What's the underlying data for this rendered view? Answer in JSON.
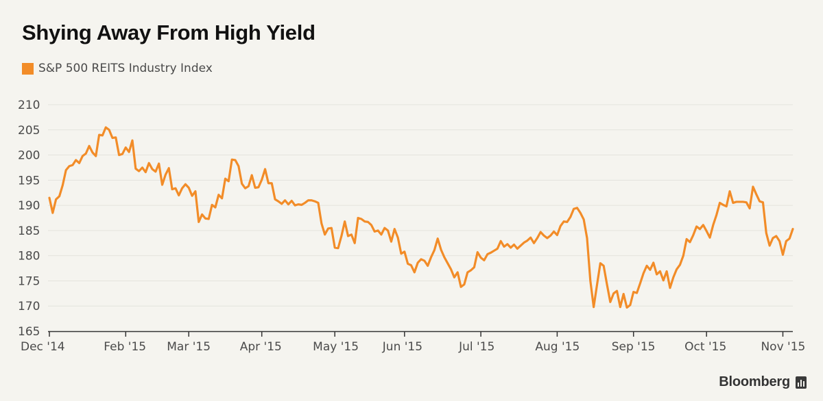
{
  "colors": {
    "line": "#f28c28",
    "grid": "#e4e3dd",
    "axis": "#333333",
    "text": "#4a4a4a"
  },
  "chart_data": {
    "type": "line",
    "title": "Shying Away From High Yield",
    "xlabel": "",
    "ylabel": "",
    "ylim": [
      165,
      210
    ],
    "yticks": [
      165,
      170,
      175,
      180,
      185,
      190,
      195,
      200,
      205,
      210
    ],
    "xtick_labels": [
      "Dec '14",
      "Feb '15",
      "Mar '15",
      "Apr '15",
      "May '15",
      "Jun '15",
      "Jul '15",
      "Aug '15",
      "Sep '15",
      "Oct '15",
      "Nov '15"
    ],
    "xtick_positions": [
      0,
      23,
      42,
      64,
      86,
      107,
      130,
      153,
      176,
      198,
      221
    ],
    "grid": true,
    "legend": "top-left",
    "series": [
      {
        "name": "S&P 500 REITS Industry Index",
        "values": [
          191.5,
          188.5,
          191.2,
          191.8,
          194.0,
          197.0,
          197.8,
          198.0,
          199.0,
          198.4,
          199.8,
          200.3,
          201.8,
          200.5,
          199.8,
          204.0,
          203.9,
          205.5,
          205.0,
          203.4,
          203.5,
          200.0,
          200.2,
          201.5,
          200.6,
          202.9,
          197.3,
          196.8,
          197.5,
          196.6,
          198.4,
          197.2,
          196.7,
          198.3,
          194.1,
          196.1,
          197.4,
          193.2,
          193.4,
          192.0,
          193.4,
          194.2,
          193.5,
          191.9,
          192.8,
          186.7,
          188.2,
          187.4,
          187.3,
          190.1,
          189.6,
          192.1,
          191.4,
          195.3,
          194.8,
          199.1,
          199.0,
          197.8,
          194.3,
          193.4,
          193.8,
          196.0,
          193.5,
          193.6,
          195.1,
          197.2,
          194.4,
          194.4,
          191.2,
          190.8,
          190.3,
          191.0,
          190.2,
          190.9,
          190.0,
          190.2,
          190.1,
          190.5,
          191.0,
          191.0,
          190.8,
          190.5,
          186.4,
          184.2,
          185.4,
          185.5,
          181.6,
          181.5,
          183.9,
          186.8,
          183.9,
          184.2,
          182.5,
          187.5,
          187.3,
          186.8,
          186.7,
          186.1,
          184.8,
          185.0,
          184.2,
          185.5,
          185.0,
          182.8,
          185.3,
          183.6,
          180.4,
          180.8,
          178.4,
          178.1,
          176.7,
          178.6,
          179.3,
          179.0,
          178.0,
          179.7,
          181.1,
          183.4,
          181.2,
          179.7,
          178.5,
          177.3,
          175.7,
          176.7,
          173.8,
          174.3,
          176.7,
          177.1,
          177.7,
          180.7,
          179.6,
          179.1,
          180.3,
          180.6,
          181.0,
          181.4,
          182.9,
          181.8,
          182.3,
          181.6,
          182.2,
          181.4,
          182.0,
          182.6,
          183.0,
          183.6,
          182.5,
          183.5,
          184.7,
          184.0,
          183.5,
          184.0,
          184.8,
          184.1,
          185.9,
          186.8,
          186.7,
          187.7,
          189.3,
          189.5,
          188.5,
          187.2,
          183.5,
          175.0,
          169.8,
          174.2,
          178.5,
          178.0,
          174.3,
          170.8,
          172.5,
          173.0,
          169.8,
          172.4,
          169.7,
          170.2,
          172.8,
          172.6,
          174.5,
          176.5,
          178.0,
          177.2,
          178.6,
          176.3,
          176.9,
          175.1,
          176.9,
          173.6,
          175.7,
          177.3,
          178.2,
          180.0,
          183.3,
          182.7,
          184.1,
          185.8,
          185.3,
          186.1,
          184.9,
          183.6,
          186.1,
          188.1,
          190.5,
          190.1,
          189.8,
          192.8,
          190.5,
          190.7,
          190.7,
          190.7,
          190.6,
          189.4,
          193.7,
          192.2,
          190.8,
          190.6,
          184.5,
          182.0,
          183.5,
          183.9,
          182.9,
          180.2,
          182.9,
          183.4,
          185.3
        ]
      }
    ]
  },
  "brand": {
    "name": "Bloomberg"
  }
}
